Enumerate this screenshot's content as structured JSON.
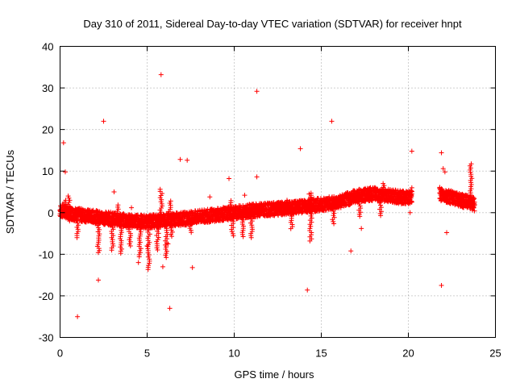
{
  "chart_data": {
    "type": "scatter",
    "title": "Day 310 of 2011, Sidereal Day-to-day VTEC variation (SDTVAR) for receiver hnpt",
    "xlabel": "GPS time / hours",
    "ylabel": "SDTVAR / TECUs",
    "xlim": [
      0,
      25
    ],
    "ylim": [
      -30,
      40
    ],
    "xticks": [
      0,
      5,
      10,
      15,
      20,
      25
    ],
    "yticks": [
      -30,
      -20,
      -10,
      0,
      10,
      20,
      30,
      40
    ],
    "grid": true,
    "marker": "+",
    "series": [
      {
        "name": "SDTVAR",
        "color": "#ff0000",
        "baseline": [
          [
            0.0,
            0.5
          ],
          [
            0.5,
            0.0
          ],
          [
            1.0,
            -0.5
          ],
          [
            2.0,
            -1.0
          ],
          [
            3.0,
            -1.5
          ],
          [
            4.0,
            -2.0
          ],
          [
            5.0,
            -2.2
          ],
          [
            6.0,
            -1.8
          ],
          [
            7.0,
            -1.5
          ],
          [
            8.0,
            -1.0
          ],
          [
            9.0,
            -0.5
          ],
          [
            10.0,
            0.0
          ],
          [
            11.0,
            0.5
          ],
          [
            12.0,
            0.8
          ],
          [
            13.0,
            1.0
          ],
          [
            14.0,
            1.5
          ],
          [
            15.0,
            2.0
          ],
          [
            16.0,
            2.5
          ],
          [
            17.0,
            4.0
          ],
          [
            18.0,
            4.5
          ],
          [
            19.0,
            4.0
          ],
          [
            20.0,
            3.5
          ],
          [
            20.2,
            4.0
          ]
        ],
        "baseline_2": [
          [
            21.8,
            4.5
          ],
          [
            23.0,
            3.0
          ],
          [
            23.8,
            2.0
          ]
        ],
        "dips": [
          [
            0.5,
            -2
          ],
          [
            1.0,
            -6
          ],
          [
            2.2,
            -10
          ],
          [
            3.0,
            -9
          ],
          [
            3.5,
            -10
          ],
          [
            4.0,
            -8
          ],
          [
            4.6,
            -11
          ],
          [
            5.1,
            -14
          ],
          [
            5.6,
            -9
          ],
          [
            6.1,
            -11
          ],
          [
            6.4,
            -6
          ],
          [
            7.5,
            -5
          ],
          [
            9.9,
            -6
          ],
          [
            10.5,
            -6
          ],
          [
            11.0,
            -6
          ],
          [
            13.3,
            -4
          ],
          [
            14.4,
            -7
          ],
          [
            15.7,
            -3
          ],
          [
            17.2,
            -1
          ],
          [
            18.4,
            -1
          ]
        ],
        "spikes": [
          [
            0.3,
            3
          ],
          [
            0.5,
            4
          ],
          [
            3.3,
            2
          ],
          [
            5.8,
            6
          ],
          [
            6.3,
            3
          ],
          [
            9.8,
            3
          ],
          [
            13.0,
            3
          ],
          [
            14.4,
            5
          ],
          [
            18.6,
            7
          ],
          [
            23.6,
            12
          ]
        ],
        "outliers": [
          [
            0.2,
            16.8
          ],
          [
            0.3,
            9.8
          ],
          [
            1.0,
            -25.0
          ],
          [
            2.2,
            -16.2
          ],
          [
            2.5,
            22.0
          ],
          [
            3.1,
            5.0
          ],
          [
            4.1,
            1.2
          ],
          [
            4.5,
            -12.0
          ],
          [
            5.0,
            -8.0
          ],
          [
            5.8,
            33.2
          ],
          [
            5.9,
            -13.0
          ],
          [
            6.2,
            -7.5
          ],
          [
            6.3,
            -23.0
          ],
          [
            6.9,
            12.8
          ],
          [
            7.3,
            12.6
          ],
          [
            7.6,
            -13.2
          ],
          [
            8.6,
            3.8
          ],
          [
            9.7,
            8.2
          ],
          [
            10.6,
            4.2
          ],
          [
            11.3,
            29.2
          ],
          [
            11.3,
            8.6
          ],
          [
            13.8,
            15.4
          ],
          [
            14.2,
            -18.6
          ],
          [
            14.3,
            4.5
          ],
          [
            15.6,
            22.0
          ],
          [
            16.7,
            -9.2
          ],
          [
            17.3,
            -3.8
          ],
          [
            20.2,
            14.8
          ],
          [
            20.1,
            0.0
          ],
          [
            20.2,
            6.0
          ],
          [
            21.9,
            -17.5
          ],
          [
            21.9,
            14.4
          ],
          [
            22.0,
            10.6
          ],
          [
            22.1,
            9.8
          ],
          [
            22.2,
            -4.8
          ]
        ]
      }
    ]
  }
}
